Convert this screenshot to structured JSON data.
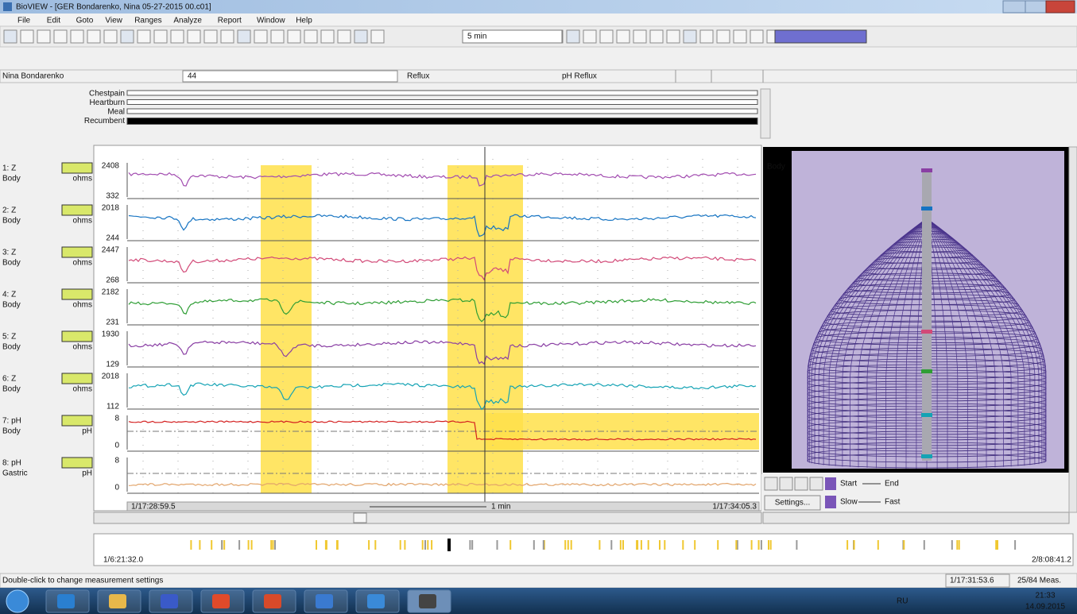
{
  "window": {
    "title": "BioVIEW - [GER Bondarenko, Nina 05-27-2015 00.c01]",
    "menu": [
      "File",
      "Edit",
      "Goto",
      "View",
      "Ranges",
      "Analyze",
      "Report",
      "Window",
      "Help"
    ]
  },
  "toolbar": {
    "interval": "5 min"
  },
  "patient": {
    "name": "Nina Bondarenko",
    "age": "44",
    "study": "Reflux",
    "analysis": "pH Reflux"
  },
  "events": [
    "Chestpain",
    "Heartburn",
    "Meal",
    "Recumbent"
  ],
  "channels": [
    {
      "id": "1: Z",
      "site": "Body",
      "unit": "ohms",
      "max": 2408,
      "min": 332
    },
    {
      "id": "2: Z",
      "site": "Body",
      "unit": "ohms",
      "max": 2018,
      "min": 244
    },
    {
      "id": "3: Z",
      "site": "Body",
      "unit": "ohms",
      "max": 2447,
      "min": 268
    },
    {
      "id": "4: Z",
      "site": "Body",
      "unit": "ohms",
      "max": 2182,
      "min": 231
    },
    {
      "id": "5: Z",
      "site": "Body",
      "unit": "ohms",
      "max": 1930,
      "min": 129
    },
    {
      "id": "6: Z",
      "site": "Body",
      "unit": "ohms",
      "max": 2018,
      "min": 112
    },
    {
      "id": "7: pH",
      "site": "Body",
      "unit": "pH",
      "max": 8,
      "min": 0
    },
    {
      "id": "8: pH",
      "site": "Gastric",
      "unit": "pH",
      "max": 8,
      "min": 0
    }
  ],
  "timeline": {
    "start": "1/17:28:59.5",
    "span": "1 min",
    "end": "1/17:34:05.3"
  },
  "viewer": {
    "label": "Body",
    "settings": "Settings...",
    "start": "Start",
    "end": "End",
    "slow": "Slow",
    "fast": "Fast"
  },
  "overview": {
    "start": "1/6:21:32.0",
    "end": "2/8:08:41.2"
  },
  "status": {
    "message": "Double-click to change measurement settings",
    "time": "1/17:31:53.6",
    "count": "25/84 Meas."
  },
  "taskbar": {
    "lang": "RU",
    "time": "21:33",
    "date": "14.09.2015"
  }
}
